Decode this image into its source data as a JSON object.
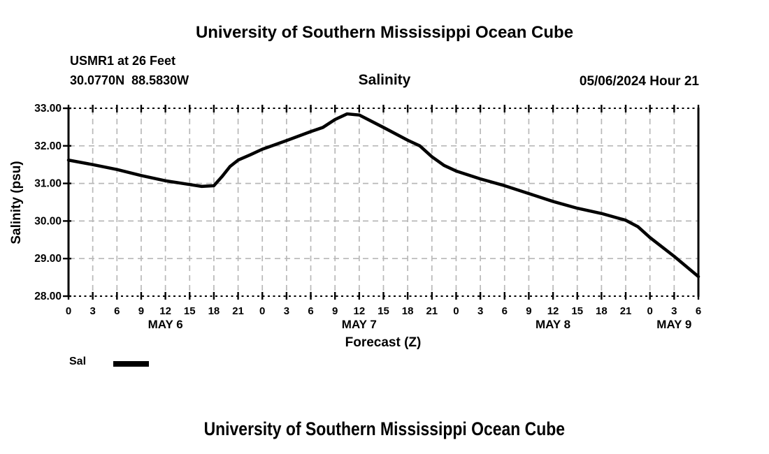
{
  "page": {
    "top_title": "University of Southern Mississippi Ocean Cube",
    "bottom_title": "University of Southern Mississippi Ocean Cube"
  },
  "header": {
    "station": "USMR1 at 26 Feet",
    "coordinates": "30.0770N  88.5830W",
    "plot_title": "Salinity",
    "run_time": "05/06/2024 Hour 21"
  },
  "legend": {
    "label": "Sal",
    "swatch_color": "#000000"
  },
  "chart_data": {
    "type": "line",
    "title": "Salinity",
    "xlabel": "Forecast (Z)",
    "ylabel": "Salinity (psu)",
    "x_hour_range": [
      0,
      78
    ],
    "ylim": [
      28,
      33
    ],
    "grid": true,
    "grid_color": "#b8b8b8",
    "line_color": "#000000",
    "legend_position": "bottom-left",
    "y_ticks": [
      {
        "value": 33,
        "label": "33.00"
      },
      {
        "value": 32,
        "label": "32.00"
      },
      {
        "value": 31,
        "label": "31.00"
      },
      {
        "value": 30,
        "label": "30.00"
      },
      {
        "value": 29,
        "label": "29.00"
      },
      {
        "value": 28,
        "label": "28.00"
      }
    ],
    "x_ticks": [
      {
        "hour": 0,
        "label": "0"
      },
      {
        "hour": 3,
        "label": "3"
      },
      {
        "hour": 6,
        "label": "6"
      },
      {
        "hour": 9,
        "label": "9"
      },
      {
        "hour": 12,
        "label": "12"
      },
      {
        "hour": 15,
        "label": "15"
      },
      {
        "hour": 18,
        "label": "18"
      },
      {
        "hour": 21,
        "label": "21"
      },
      {
        "hour": 24,
        "label": "0"
      },
      {
        "hour": 27,
        "label": "3"
      },
      {
        "hour": 30,
        "label": "6"
      },
      {
        "hour": 33,
        "label": "9"
      },
      {
        "hour": 36,
        "label": "12"
      },
      {
        "hour": 39,
        "label": "15"
      },
      {
        "hour": 42,
        "label": "18"
      },
      {
        "hour": 45,
        "label": "21"
      },
      {
        "hour": 48,
        "label": "0"
      },
      {
        "hour": 51,
        "label": "3"
      },
      {
        "hour": 54,
        "label": "6"
      },
      {
        "hour": 57,
        "label": "9"
      },
      {
        "hour": 60,
        "label": "12"
      },
      {
        "hour": 63,
        "label": "15"
      },
      {
        "hour": 66,
        "label": "18"
      },
      {
        "hour": 69,
        "label": "21"
      },
      {
        "hour": 72,
        "label": "0"
      },
      {
        "hour": 75,
        "label": "3"
      },
      {
        "hour": 78,
        "label": "6"
      }
    ],
    "day_labels": [
      {
        "hour": 12,
        "label": "MAY 6"
      },
      {
        "hour": 36,
        "label": "MAY 7"
      },
      {
        "hour": 60,
        "label": "MAY 8"
      },
      {
        "hour": 75,
        "label": "MAY 9"
      }
    ],
    "series": [
      {
        "name": "Sal",
        "color": "#000000",
        "points": [
          [
            0,
            31.62
          ],
          [
            3,
            31.5
          ],
          [
            6,
            31.37
          ],
          [
            9,
            31.21
          ],
          [
            12,
            31.07
          ],
          [
            15,
            30.97
          ],
          [
            16.5,
            30.92
          ],
          [
            18,
            30.94
          ],
          [
            19,
            31.18
          ],
          [
            20,
            31.45
          ],
          [
            21,
            31.62
          ],
          [
            22.5,
            31.76
          ],
          [
            24,
            31.91
          ],
          [
            27,
            32.14
          ],
          [
            30,
            32.38
          ],
          [
            31.5,
            32.49
          ],
          [
            33,
            32.7
          ],
          [
            34.5,
            32.85
          ],
          [
            36,
            32.82
          ],
          [
            39,
            32.49
          ],
          [
            42,
            32.15
          ],
          [
            43.5,
            32.0
          ],
          [
            45,
            31.71
          ],
          [
            46.5,
            31.48
          ],
          [
            48,
            31.33
          ],
          [
            51,
            31.12
          ],
          [
            54,
            30.94
          ],
          [
            57,
            30.73
          ],
          [
            60,
            30.52
          ],
          [
            63,
            30.34
          ],
          [
            66,
            30.2
          ],
          [
            69,
            30.02
          ],
          [
            70.5,
            29.85
          ],
          [
            72,
            29.56
          ],
          [
            75,
            29.06
          ],
          [
            78,
            28.52
          ]
        ]
      }
    ]
  }
}
